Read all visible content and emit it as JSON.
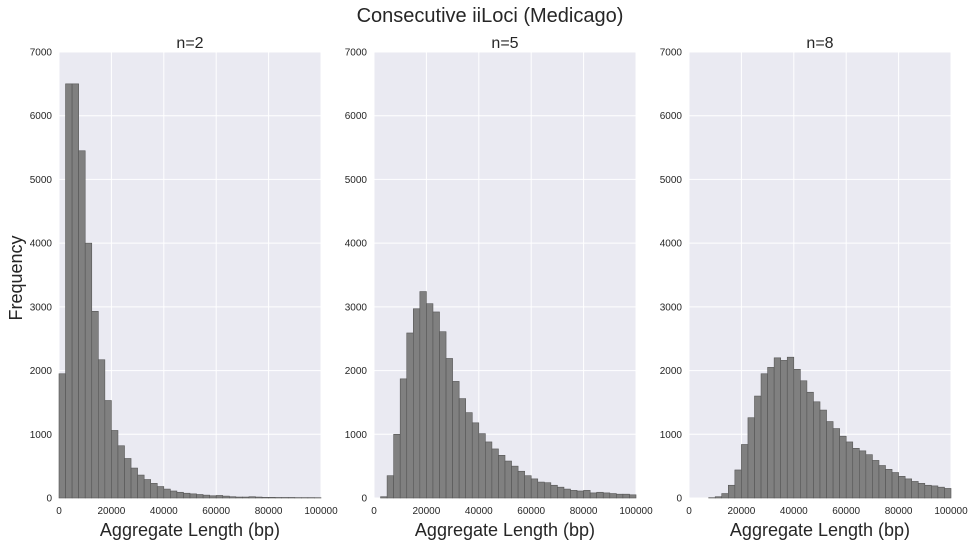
{
  "figure": {
    "suptitle": "Consecutive iiLoci (Medicago)",
    "ylabel": "Frequency",
    "colors": {
      "bar": "#808080",
      "bar_edge": "#555555",
      "panel_bg": "#eaeaf2",
      "grid": "#ffffff",
      "text": "#262626"
    }
  },
  "chart_data": [
    {
      "type": "bar",
      "title": "n=2",
      "xlabel": "Aggregate Length (bp)",
      "ylabel": "Frequency",
      "xlim": [
        0,
        100000
      ],
      "ylim": [
        0,
        7000
      ],
      "xticks": [
        "0",
        "20000",
        "40000",
        "60000",
        "80000",
        "100000"
      ],
      "yticks": [
        "0",
        "1000",
        "2000",
        "3000",
        "4000",
        "5000",
        "6000",
        "7000"
      ],
      "bin_width": 2500,
      "bin_starts": [
        0,
        2500,
        5000,
        7500,
        10000,
        12500,
        15000,
        17500,
        20000,
        22500,
        25000,
        27500,
        30000,
        32500,
        35000,
        37500,
        40000,
        42500,
        45000,
        47500,
        50000,
        52500,
        55000,
        57500,
        60000,
        62500,
        65000,
        67500,
        70000,
        72500,
        75000,
        77500,
        80000,
        82500,
        85000,
        87500,
        90000,
        92500,
        95000,
        97500
      ],
      "values": [
        1950,
        6500,
        6500,
        5450,
        4000,
        2930,
        2170,
        1530,
        1060,
        820,
        620,
        470,
        360,
        290,
        230,
        180,
        140,
        110,
        90,
        75,
        65,
        55,
        45,
        35,
        40,
        30,
        20,
        15,
        15,
        20,
        15,
        10,
        10,
        8,
        8,
        8,
        6,
        6,
        6,
        5
      ],
      "grid": true
    },
    {
      "type": "bar",
      "title": "n=5",
      "xlabel": "Aggregate Length (bp)",
      "ylabel": "",
      "xlim": [
        0,
        100000
      ],
      "ylim": [
        0,
        7000
      ],
      "xticks": [
        "0",
        "20000",
        "40000",
        "60000",
        "80000",
        "100000"
      ],
      "yticks": [
        "0",
        "1000",
        "2000",
        "3000",
        "4000",
        "5000",
        "6000",
        "7000"
      ],
      "bin_width": 2500,
      "bin_starts": [
        0,
        2500,
        5000,
        7500,
        10000,
        12500,
        15000,
        17500,
        20000,
        22500,
        25000,
        27500,
        30000,
        32500,
        35000,
        37500,
        40000,
        42500,
        45000,
        47500,
        50000,
        52500,
        55000,
        57500,
        60000,
        62500,
        65000,
        67500,
        70000,
        72500,
        75000,
        77500,
        80000,
        82500,
        85000,
        87500,
        90000,
        92500,
        95000,
        97500
      ],
      "values": [
        0,
        20,
        350,
        1000,
        1870,
        2590,
        2970,
        3240,
        3050,
        2920,
        2610,
        2190,
        1830,
        1560,
        1340,
        1180,
        1010,
        880,
        770,
        670,
        580,
        500,
        420,
        350,
        300,
        250,
        240,
        200,
        170,
        140,
        120,
        110,
        120,
        80,
        90,
        80,
        70,
        60,
        60,
        50
      ],
      "grid": true
    },
    {
      "type": "bar",
      "title": "n=8",
      "xlabel": "Aggregate Length (bp)",
      "ylabel": "",
      "xlim": [
        0,
        100000
      ],
      "ylim": [
        0,
        7000
      ],
      "xticks": [
        "0",
        "20000",
        "40000",
        "60000",
        "80000",
        "100000"
      ],
      "yticks": [
        "0",
        "1000",
        "2000",
        "3000",
        "4000",
        "5000",
        "6000",
        "7000"
      ],
      "bin_width": 2500,
      "bin_starts": [
        0,
        2500,
        5000,
        7500,
        10000,
        12500,
        15000,
        17500,
        20000,
        22500,
        25000,
        27500,
        30000,
        32500,
        35000,
        37500,
        40000,
        42500,
        45000,
        47500,
        50000,
        52500,
        55000,
        57500,
        60000,
        62500,
        65000,
        67500,
        70000,
        72500,
        75000,
        77500,
        80000,
        82500,
        85000,
        87500,
        90000,
        92500,
        95000,
        97500
      ],
      "values": [
        0,
        0,
        0,
        5,
        20,
        70,
        200,
        440,
        840,
        1260,
        1600,
        1950,
        2050,
        2200,
        2160,
        2210,
        2020,
        1840,
        1660,
        1510,
        1380,
        1200,
        1090,
        970,
        880,
        780,
        740,
        680,
        590,
        510,
        450,
        400,
        340,
        300,
        260,
        230,
        200,
        190,
        170,
        150
      ],
      "grid": true
    }
  ]
}
